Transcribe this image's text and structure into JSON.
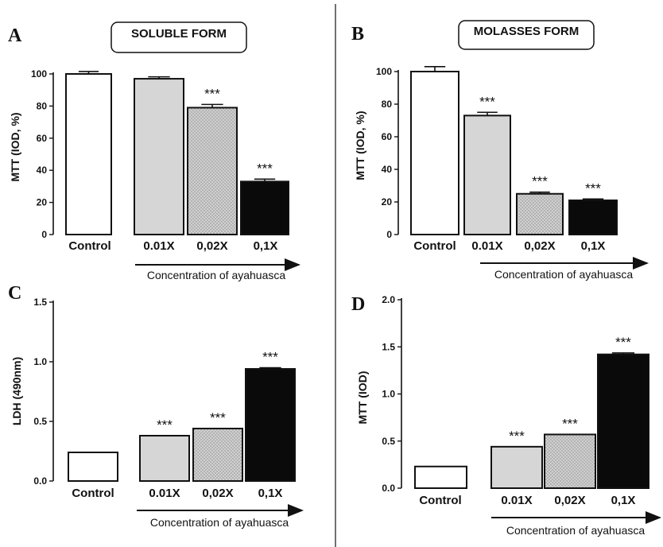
{
  "chart_data": [
    {
      "type": "bar",
      "panel": "A",
      "title": "SOLUBLE FORM",
      "ylabel": "MTT (IOD, %)",
      "xlabel": "Concentration of ayahuasca",
      "ylim": [
        0,
        100
      ],
      "yticks": [
        "0",
        "20",
        "40",
        "60",
        "80",
        "100"
      ],
      "categories": [
        "Control",
        "0.01X",
        "0,02X",
        "0,1X"
      ],
      "values": [
        100,
        97,
        79,
        33
      ],
      "errors": [
        1.5,
        1.2,
        2.0,
        1.5
      ],
      "significance": [
        "",
        "",
        "***",
        "***"
      ]
    },
    {
      "type": "bar",
      "panel": "B",
      "title": "MOLASSES FORM",
      "ylabel": "MTT (IOD, %)",
      "xlabel": "Concentration of ayahuasca",
      "ylim": [
        0,
        100
      ],
      "yticks": [
        "0",
        "20",
        "40",
        "60",
        "80",
        "100"
      ],
      "categories": [
        "Control",
        "0.01X",
        "0,02X",
        "0,1X"
      ],
      "values": [
        100,
        73,
        25,
        21
      ],
      "errors": [
        3,
        2,
        1,
        0.8
      ],
      "significance": [
        "",
        "***",
        "***",
        "***"
      ]
    },
    {
      "type": "bar",
      "panel": "C",
      "title": "",
      "ylabel": "LDH (490nm)",
      "xlabel": "Concentration of ayahuasca",
      "ylim": [
        0,
        1.5
      ],
      "yticks": [
        "0.0",
        "0.5",
        "1.0",
        "1.5"
      ],
      "categories": [
        "Control",
        "0.01X",
        "0,02X",
        "0,1X"
      ],
      "values": [
        0.24,
        0.38,
        0.44,
        0.94
      ],
      "errors": [
        0,
        0,
        0,
        0.01
      ],
      "significance": [
        "",
        "***",
        "***",
        "***"
      ]
    },
    {
      "type": "bar",
      "panel": "D",
      "title": "",
      "ylabel": "MTT (IOD)",
      "xlabel": "Concentration of ayahuasca",
      "ylim": [
        0,
        2.0
      ],
      "yticks": [
        "0.0",
        "0.5",
        "1.0",
        "1.5",
        "2.0"
      ],
      "categories": [
        "Control",
        "0.01X",
        "0,02X",
        "0,1X"
      ],
      "values": [
        0.23,
        0.44,
        0.57,
        1.42
      ],
      "errors": [
        0,
        0,
        0,
        0.015
      ],
      "significance": [
        "",
        "***",
        "***",
        "***"
      ]
    }
  ],
  "colors": {
    "control": "#ffffff",
    "low": "#d6d6d6",
    "mid": "#cfcfcf",
    "high": "#0a0a0a",
    "axis": "#111111"
  }
}
